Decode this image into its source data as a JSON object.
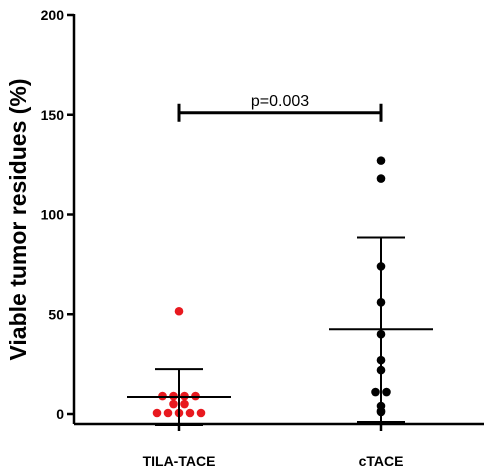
{
  "chart_data": {
    "type": "scatter",
    "ylabel": "Viable tumor residues (%)",
    "xlabel": "",
    "ylim": [
      0,
      200
    ],
    "yticks": [
      0,
      50,
      100,
      150,
      200
    ],
    "categories": [
      "TILA-TACE",
      "cTACE"
    ],
    "series": [
      {
        "category": "TILA-TACE",
        "color": "#e8191f",
        "values": [
          51.5,
          9,
          9,
          9,
          9,
          5,
          5,
          0.5,
          0.5,
          0.5,
          0.5,
          0.5
        ],
        "mean": 8.5,
        "sd_upper": 22.5,
        "sd_lower": -5.5
      },
      {
        "category": "cTACE",
        "color": "#000000",
        "values": [
          127,
          118,
          74,
          56,
          40,
          27,
          22,
          11,
          11,
          4,
          1.5,
          1
        ],
        "mean": 42.5,
        "sd_upper": 88.5,
        "sd_lower": -4
      }
    ],
    "annotation": {
      "text": "p=0.003",
      "y": 151,
      "from": "TILA-TACE",
      "to": "cTACE"
    },
    "grid": false,
    "legend": "none"
  }
}
